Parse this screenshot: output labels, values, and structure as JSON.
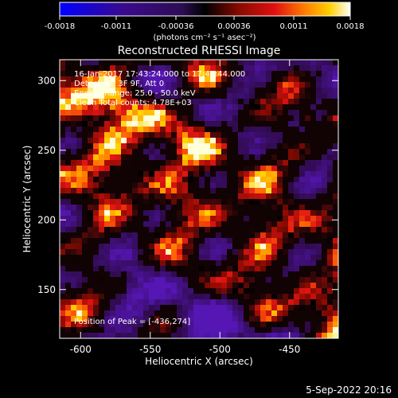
{
  "chart_data": {
    "type": "heatmap",
    "title": "Reconstructed RHESSI Image",
    "xlabel": "Heliocentric X (arcsec)",
    "ylabel": "Heliocentric Y (arcsec)",
    "xlim": [
      -615,
      -415
    ],
    "ylim": [
      115,
      315
    ],
    "x_ticks": [
      -600,
      -550,
      -500,
      -450
    ],
    "y_ticks": [
      150,
      200,
      250,
      300
    ],
    "colorbar": {
      "range": [
        -0.0018,
        0.0018
      ],
      "ticks": [
        -0.0018,
        -0.0011,
        -0.00036,
        0.00036,
        0.0011,
        0.0018
      ],
      "tick_labels": [
        "-0.0018",
        "-0.0011",
        "-0.00036",
        "0.00036",
        "0.0011",
        "0.0018"
      ],
      "units": "(photons cm⁻² s⁻¹ asec⁻²)"
    },
    "annotations": [
      "16-Jan-2017 17:43:24.000 to 17:47:44.000",
      "Detectors: 3F 9F, Att 0",
      "Energy Range: 25.0 - 50.0 keV",
      "Clean     Total counts: 4.78E+03"
    ],
    "peak": {
      "label": "Position of Peak = [-436,274]",
      "x": -436,
      "y": 274
    },
    "colors": {
      "background": "#000000",
      "foreground": "#ffffff",
      "colormap": [
        "#0000ff",
        "#3a0a8c",
        "#2d0d55",
        "#000000",
        "#8a0a00",
        "#e01010",
        "#ff7a00",
        "#ffd000",
        "#ffffff"
      ]
    }
  },
  "footer": {
    "timestamp": "5-Sep-2022 20:16"
  }
}
